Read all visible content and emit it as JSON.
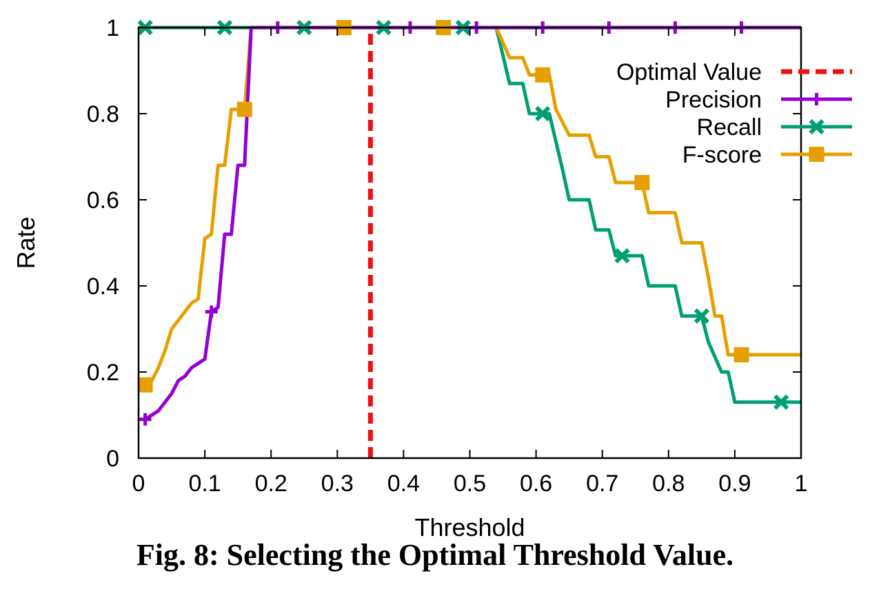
{
  "caption": "Fig. 8: Selecting the Optimal Threshold Value.",
  "chart_data": {
    "type": "line",
    "xlabel": "Threshold",
    "ylabel": "Rate",
    "xlim": [
      0,
      1
    ],
    "ylim": [
      0,
      1
    ],
    "x_ticks": [
      "0",
      "0.1",
      "0.2",
      "0.3",
      "0.4",
      "0.5",
      "0.6",
      "0.7",
      "0.8",
      "0.9",
      "1"
    ],
    "y_ticks": [
      "0",
      "0.2",
      "0.4",
      "0.6",
      "0.8",
      "1"
    ],
    "grid": false,
    "legend_position": "top-right",
    "optimal_value": {
      "name": "Optimal Value",
      "x": 0.35,
      "color": "#ee1111",
      "style": "dashed"
    },
    "series": [
      {
        "name": "Precision",
        "color": "#9400d3",
        "marker": "plus",
        "x": [
          0.01,
          0.02,
          0.03,
          0.04,
          0.05,
          0.06,
          0.07,
          0.08,
          0.09,
          0.1,
          0.11,
          0.12,
          0.13,
          0.14,
          0.15,
          0.16,
          0.17,
          0.2,
          0.3,
          0.4,
          0.5,
          0.54,
          0.6,
          0.7,
          0.8,
          0.9,
          1.0
        ],
        "y": [
          0.09,
          0.1,
          0.11,
          0.13,
          0.15,
          0.18,
          0.19,
          0.21,
          0.22,
          0.23,
          0.34,
          0.35,
          0.52,
          0.52,
          0.68,
          0.68,
          1.0,
          1.0,
          1.0,
          1.0,
          1.0,
          1.0,
          1.0,
          1.0,
          1.0,
          1.0,
          1.0
        ],
        "marker_x": [
          0.01,
          0.11,
          0.21,
          0.41,
          0.51,
          0.61,
          0.71,
          0.81,
          0.91
        ]
      },
      {
        "name": "Recall",
        "color": "#009e73",
        "marker": "cross",
        "x": [
          0.0,
          0.54,
          0.56,
          0.58,
          0.59,
          0.61,
          0.62,
          0.64,
          0.65,
          0.68,
          0.69,
          0.71,
          0.72,
          0.76,
          0.77,
          0.81,
          0.82,
          0.85,
          0.86,
          0.88,
          0.89,
          0.9,
          0.91,
          0.97,
          1.0
        ],
        "y": [
          1.0,
          1.0,
          0.87,
          0.87,
          0.8,
          0.8,
          0.8,
          0.67,
          0.6,
          0.6,
          0.53,
          0.53,
          0.47,
          0.47,
          0.4,
          0.4,
          0.33,
          0.33,
          0.27,
          0.2,
          0.2,
          0.13,
          0.13,
          0.13,
          0.13
        ],
        "marker_x": [
          0.01,
          0.13,
          0.25,
          0.37,
          0.49,
          0.61,
          0.73,
          0.85,
          0.97
        ]
      },
      {
        "name": "F-score",
        "color": "#e69f00",
        "marker": "square",
        "x": [
          0.01,
          0.02,
          0.03,
          0.04,
          0.05,
          0.06,
          0.07,
          0.08,
          0.09,
          0.1,
          0.11,
          0.12,
          0.13,
          0.14,
          0.15,
          0.16,
          0.17,
          0.2,
          0.3,
          0.4,
          0.5,
          0.54,
          0.56,
          0.58,
          0.59,
          0.61,
          0.62,
          0.63,
          0.65,
          0.68,
          0.69,
          0.71,
          0.72,
          0.76,
          0.77,
          0.81,
          0.82,
          0.85,
          0.86,
          0.87,
          0.88,
          0.89,
          0.9,
          1.0
        ],
        "y": [
          0.17,
          0.18,
          0.21,
          0.25,
          0.3,
          0.32,
          0.34,
          0.36,
          0.37,
          0.51,
          0.52,
          0.68,
          0.68,
          0.81,
          0.81,
          0.81,
          1.0,
          1.0,
          1.0,
          1.0,
          1.0,
          1.0,
          0.93,
          0.93,
          0.89,
          0.89,
          0.89,
          0.81,
          0.75,
          0.75,
          0.7,
          0.7,
          0.64,
          0.64,
          0.57,
          0.57,
          0.5,
          0.5,
          0.42,
          0.33,
          0.33,
          0.24,
          0.24,
          0.24
        ],
        "marker_x": [
          0.01,
          0.16,
          0.31,
          0.46,
          0.61,
          0.76,
          0.91
        ]
      }
    ]
  }
}
